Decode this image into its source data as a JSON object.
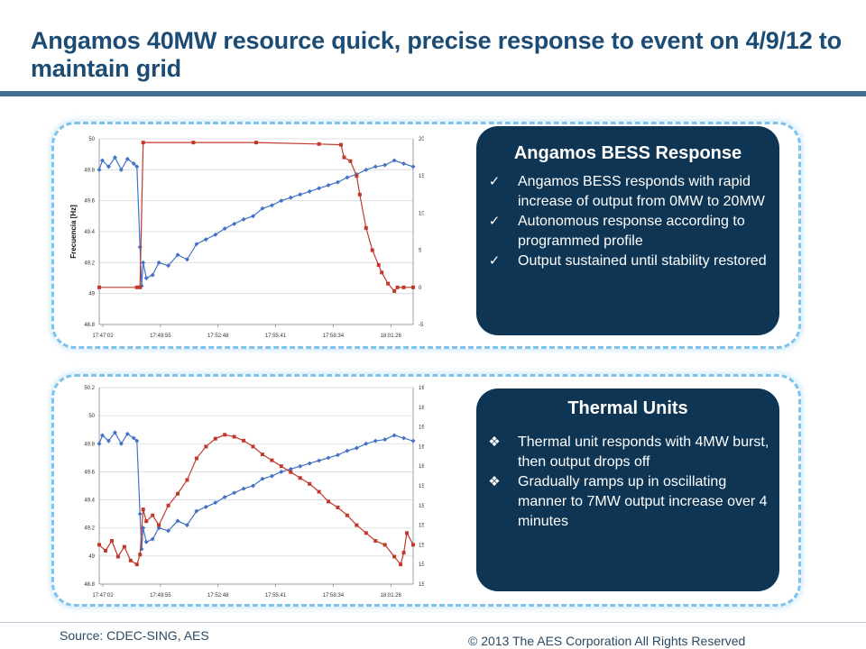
{
  "slide": {
    "title": "Angamos 40MW resource quick, precise response to event on 4/9/12 to maintain grid",
    "source": "Source:  CDEC-SING, AES",
    "copyright": "© 2013 The AES Corporation All Rights Reserved"
  },
  "colors": {
    "frequency": "#4472c4",
    "output": "#c0392b",
    "box": "#0e3553",
    "title": "#1c4c74"
  },
  "info_boxes": [
    {
      "title": "Angamos BESS Response",
      "bullet_icon": "check-mark-icon",
      "bullet_glyph": "✓",
      "items": [
        "Angamos BESS responds with rapid increase of output from 0MW to 20MW",
        "Autonomous response according to programmed profile",
        "Output sustained until stability restored"
      ]
    },
    {
      "title": "Thermal Units",
      "bullet_icon": "diamond-bullet-icon",
      "bullet_glyph": "❖",
      "items": [
        "Thermal unit responds with 4MW burst, then output drops off",
        "Gradually ramps up in oscillating manner to 7MW output increase over 4 minutes"
      ]
    }
  ],
  "chart_data": [
    {
      "type": "line",
      "ylabel": "Frecuencia [Hz]",
      "xlabel": "",
      "x_ticks": [
        "17:47:02",
        "17:49:55",
        "17:52:48",
        "17:55:41",
        "17:58:34",
        "18:01:26"
      ],
      "xlim": [
        0,
        1.0
      ],
      "ylim": [
        48.8,
        50
      ],
      "y_ticks": [
        48.8,
        49,
        49.2,
        49.4,
        49.6,
        49.8,
        50
      ],
      "y2lim": [
        -5,
        20
      ],
      "y2_ticks": [
        -5,
        0,
        5,
        10,
        15,
        20
      ],
      "grid": true,
      "series": [
        {
          "axis": "left",
          "color": "#4472c4",
          "x": [
            0.0,
            0.01,
            0.03,
            0.05,
            0.07,
            0.09,
            0.11,
            0.12,
            0.13,
            0.135,
            0.14,
            0.15,
            0.17,
            0.19,
            0.22,
            0.25,
            0.28,
            0.31,
            0.34,
            0.37,
            0.4,
            0.43,
            0.46,
            0.49,
            0.52,
            0.55,
            0.58,
            0.61,
            0.64,
            0.67,
            0.7,
            0.73,
            0.76,
            0.79,
            0.82,
            0.85,
            0.88,
            0.91,
            0.94,
            0.97,
            1.0
          ],
          "values": [
            49.8,
            49.86,
            49.82,
            49.88,
            49.8,
            49.87,
            49.84,
            49.82,
            49.3,
            49.05,
            49.2,
            49.1,
            49.12,
            49.2,
            49.18,
            49.25,
            49.22,
            49.32,
            49.35,
            49.38,
            49.42,
            49.45,
            49.48,
            49.5,
            49.55,
            49.57,
            49.6,
            49.62,
            49.64,
            49.66,
            49.68,
            49.7,
            49.72,
            49.75,
            49.77,
            49.8,
            49.82,
            49.83,
            49.86,
            49.84,
            49.82
          ]
        },
        {
          "axis": "right",
          "color": "#c0392b",
          "x": [
            0.0,
            0.12,
            0.13,
            0.14,
            0.3,
            0.5,
            0.7,
            0.77,
            0.78,
            0.8,
            0.82,
            0.83,
            0.85,
            0.87,
            0.89,
            0.9,
            0.92,
            0.94,
            0.95,
            0.97,
            1.0
          ],
          "values": [
            0,
            0,
            0,
            19.5,
            19.5,
            19.5,
            19.3,
            19.2,
            17.5,
            17.0,
            15.0,
            12.5,
            8.0,
            5.0,
            3.0,
            2.0,
            0.5,
            -0.5,
            0.0,
            0.0,
            0.0
          ]
        }
      ]
    },
    {
      "type": "line",
      "ylabel": "",
      "xlabel": "",
      "x_ticks": [
        "17:47:02",
        "17:49:55",
        "17:52:48",
        "17:55:41",
        "17:58:34",
        "18:01:26"
      ],
      "xlim": [
        0,
        1.0
      ],
      "ylim": [
        48.8,
        50.2
      ],
      "y_ticks": [
        48.8,
        49,
        49.2,
        49.4,
        49.6,
        49.8,
        50,
        50.2
      ],
      "y2lim": [
        154,
        164
      ],
      "y2_ticks": [
        154,
        155,
        156,
        157,
        158,
        159,
        160,
        161,
        162,
        163,
        164
      ],
      "grid": true,
      "series": [
        {
          "axis": "left",
          "color": "#4472c4",
          "x": [
            0.0,
            0.01,
            0.03,
            0.05,
            0.07,
            0.09,
            0.11,
            0.12,
            0.13,
            0.135,
            0.14,
            0.15,
            0.17,
            0.19,
            0.22,
            0.25,
            0.28,
            0.31,
            0.34,
            0.37,
            0.4,
            0.43,
            0.46,
            0.49,
            0.52,
            0.55,
            0.58,
            0.61,
            0.64,
            0.67,
            0.7,
            0.73,
            0.76,
            0.79,
            0.82,
            0.85,
            0.88,
            0.91,
            0.94,
            0.97,
            1.0
          ],
          "values": [
            49.8,
            49.86,
            49.82,
            49.88,
            49.8,
            49.87,
            49.84,
            49.82,
            49.3,
            49.05,
            49.2,
            49.1,
            49.12,
            49.2,
            49.18,
            49.25,
            49.22,
            49.32,
            49.35,
            49.38,
            49.42,
            49.45,
            49.48,
            49.5,
            49.55,
            49.57,
            49.6,
            49.62,
            49.64,
            49.66,
            49.68,
            49.7,
            49.72,
            49.75,
            49.77,
            49.8,
            49.82,
            49.83,
            49.86,
            49.84,
            49.82
          ]
        },
        {
          "axis": "right",
          "color": "#c0392b",
          "x": [
            0.0,
            0.02,
            0.04,
            0.06,
            0.08,
            0.1,
            0.12,
            0.13,
            0.14,
            0.15,
            0.17,
            0.19,
            0.22,
            0.25,
            0.28,
            0.31,
            0.34,
            0.37,
            0.4,
            0.43,
            0.46,
            0.49,
            0.52,
            0.55,
            0.58,
            0.61,
            0.64,
            0.67,
            0.7,
            0.73,
            0.76,
            0.79,
            0.82,
            0.85,
            0.88,
            0.91,
            0.94,
            0.96,
            0.97,
            0.98,
            1.0
          ],
          "values": [
            156.0,
            155.7,
            156.2,
            155.4,
            155.9,
            155.2,
            155.0,
            155.5,
            157.8,
            157.2,
            157.5,
            157.0,
            158.0,
            158.6,
            159.3,
            160.4,
            161.0,
            161.4,
            161.6,
            161.5,
            161.3,
            161.0,
            160.6,
            160.3,
            160.0,
            159.7,
            159.4,
            159.1,
            158.7,
            158.2,
            157.9,
            157.5,
            157.0,
            156.6,
            156.2,
            156.0,
            155.4,
            155.0,
            155.6,
            156.6,
            156.0
          ]
        }
      ]
    }
  ]
}
